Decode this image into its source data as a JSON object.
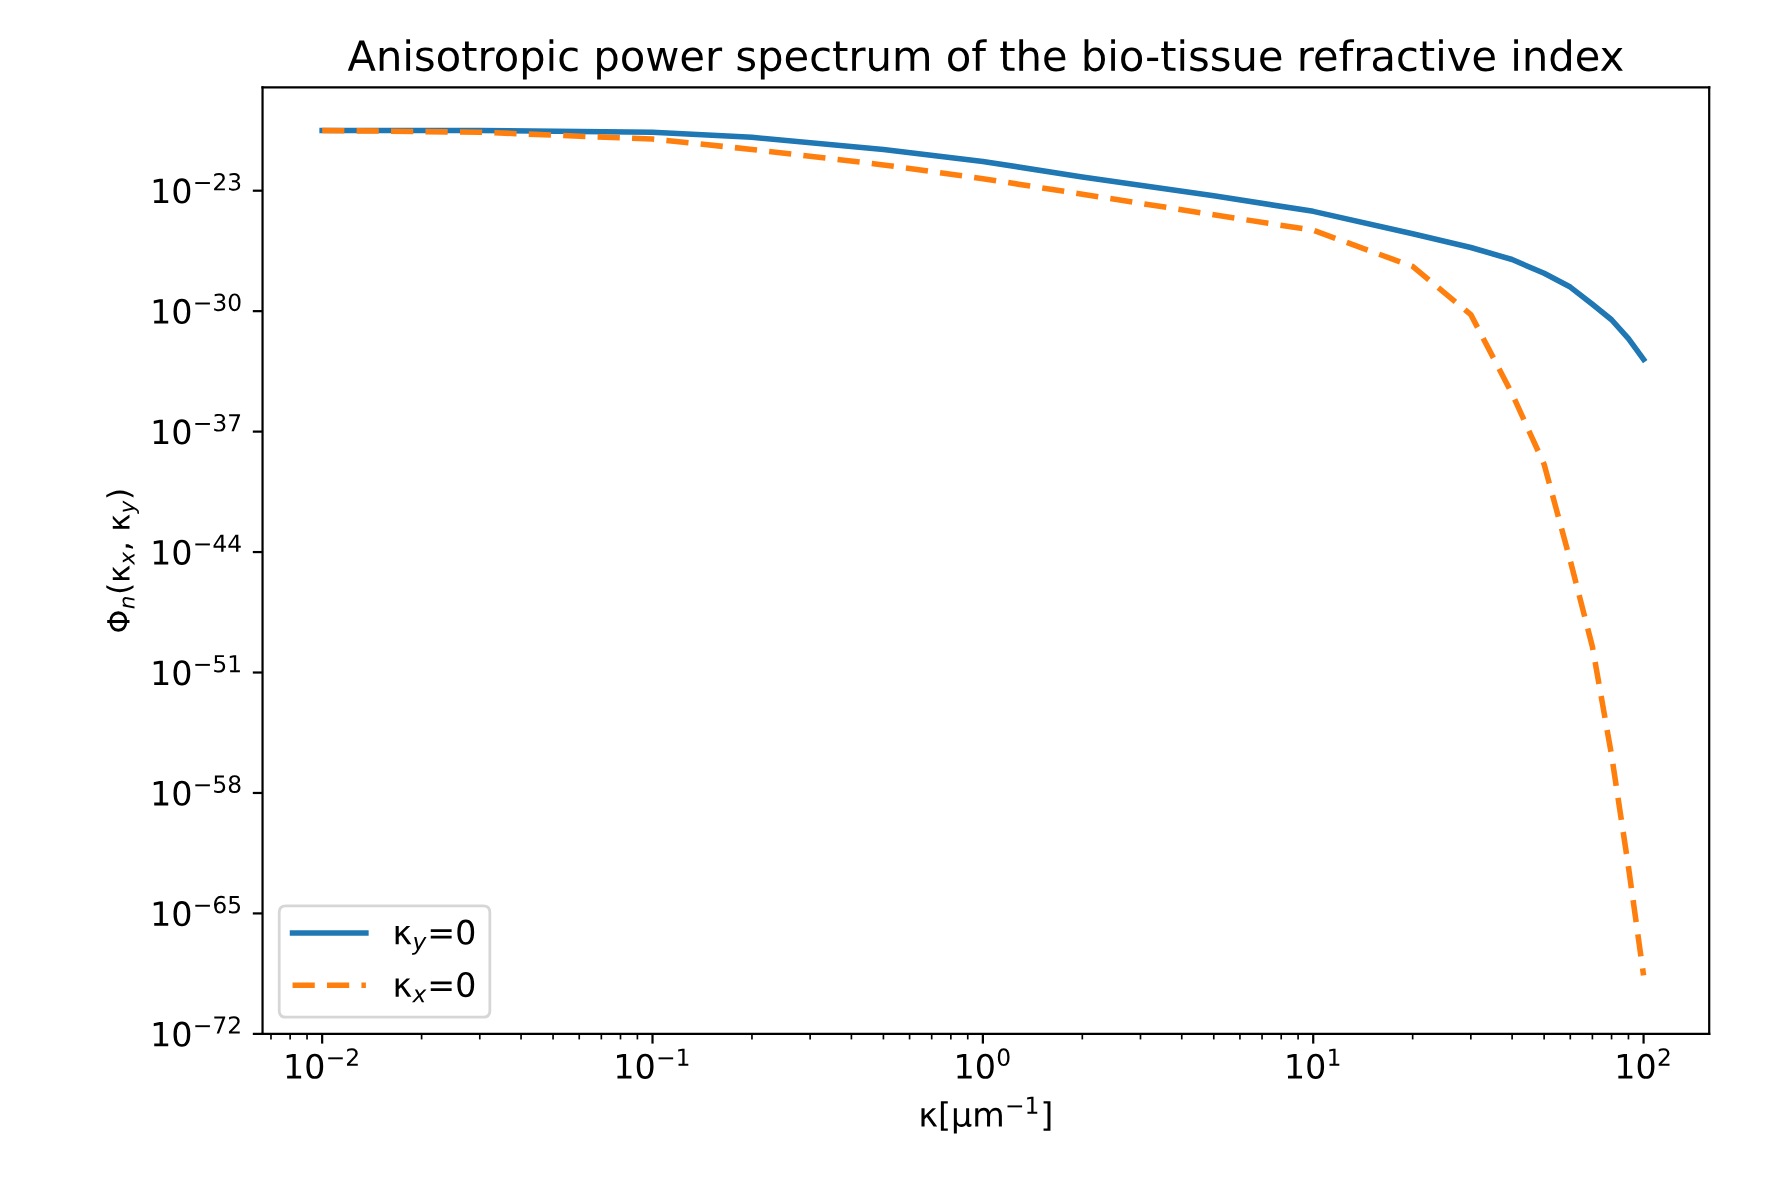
{
  "chart_data": {
    "type": "line",
    "title": "Anisotropic power spectrum of the bio-tissue refractive index",
    "xlabel": "κ[μm$^{−1}$]",
    "ylabel": "Φ$_{n}$(κ$_{x}$, κ$_{y}$)",
    "log": "xy",
    "xlim": [
      0.0066,
      158
    ],
    "ylim": [
      1e-72,
      1e-17
    ],
    "xticks": [
      {
        "value": 0.01,
        "label": "10$^{−2}$"
      },
      {
        "value": 0.1,
        "label": "10$^{−1}$"
      },
      {
        "value": 1,
        "label": "10$^{0}$"
      },
      {
        "value": 10,
        "label": "10$^{1}$"
      },
      {
        "value": 100,
        "label": "10$^{2}$"
      }
    ],
    "yticks": [
      {
        "value": 1e-72,
        "label": "10$^{−72}$"
      },
      {
        "value": 1e-65,
        "label": "10$^{−65}$"
      },
      {
        "value": 1e-58,
        "label": "10$^{−58}$"
      },
      {
        "value": 1e-51,
        "label": "10$^{−51}$"
      },
      {
        "value": 1e-44,
        "label": "10$^{−44}$"
      },
      {
        "value": 1e-37,
        "label": "10$^{−37}$"
      },
      {
        "value": 1e-30,
        "label": "10$^{−30}$"
      },
      {
        "value": 1e-23,
        "label": "10$^{−23}$"
      }
    ],
    "legend": "bottom left",
    "grid": false,
    "marker": "none",
    "x": [
      0.01,
      0.03,
      0.1,
      0.2,
      0.5,
      1,
      2,
      5,
      10,
      20,
      30,
      40,
      50,
      60,
      70,
      80,
      90,
      100
    ],
    "series": [
      {
        "name": "κ$_{y}$=0",
        "color": "#1f77b4",
        "line_style": "solid",
        "values": [
          3.16e-20,
          3.16e-20,
          2.51e-20,
          1.26e-20,
          2.51e-21,
          5.01e-22,
          6.31e-23,
          5.01e-24,
          6.31e-25,
          3.16e-26,
          5.01e-27,
          1e-27,
          1.58e-28,
          2.51e-29,
          2.51e-30,
          3.16e-31,
          2.51e-32,
          1.58e-33
        ]
      },
      {
        "name": "κ$_{x}$=0",
        "color": "#ff7f0e",
        "line_style": "dashed",
        "values": [
          3.16e-20,
          2.51e-20,
          1e-20,
          2.51e-21,
          3.16e-22,
          5.01e-23,
          6.31e-24,
          3.98e-25,
          5.01e-26,
          3.98e-28,
          6.31e-31,
          1.58e-35,
          1.26e-39,
          3.16e-45,
          3.16e-50,
          1.58e-56,
          5.01e-63,
          2.51e-69
        ]
      }
    ]
  }
}
